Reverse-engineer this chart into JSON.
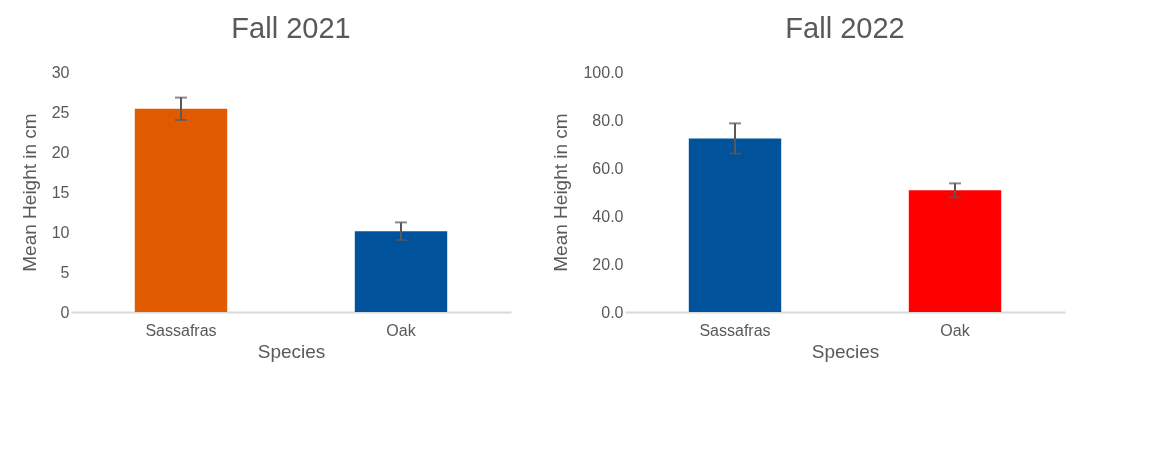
{
  "chart_data": [
    {
      "type": "bar",
      "title": "Fall 2021",
      "xlabel": "Species",
      "ylabel": "Mean Height in cm",
      "categories": [
        "Sassafras",
        "Oak"
      ],
      "values": [
        25.4,
        10.1
      ],
      "colors": [
        "#e05a00",
        "#00539b"
      ],
      "errors": [
        1.4,
        1.1
      ],
      "ylim": [
        0,
        30
      ],
      "yticks": [
        0,
        5,
        10,
        15,
        20,
        25,
        30
      ],
      "grid": false
    },
    {
      "type": "bar",
      "title": "Fall 2022",
      "xlabel": "Species",
      "ylabel": "Mean Height in cm",
      "categories": [
        "Sassafras",
        "Oak"
      ],
      "values": [
        72.3,
        50.7
      ],
      "colors": [
        "#00539b",
        "#ff0000"
      ],
      "errors": [
        6.3,
        2.9
      ],
      "ylim": [
        0,
        100
      ],
      "yticks": [
        {
          "value": 0,
          "label": "0.0"
        },
        {
          "value": 20,
          "label": "20.0"
        },
        {
          "value": 40,
          "label": "40.0"
        },
        {
          "value": 60,
          "label": "60.0"
        },
        {
          "value": 80,
          "label": "80.0"
        },
        {
          "value": 100,
          "label": "100.0"
        }
      ],
      "grid": false
    }
  ]
}
